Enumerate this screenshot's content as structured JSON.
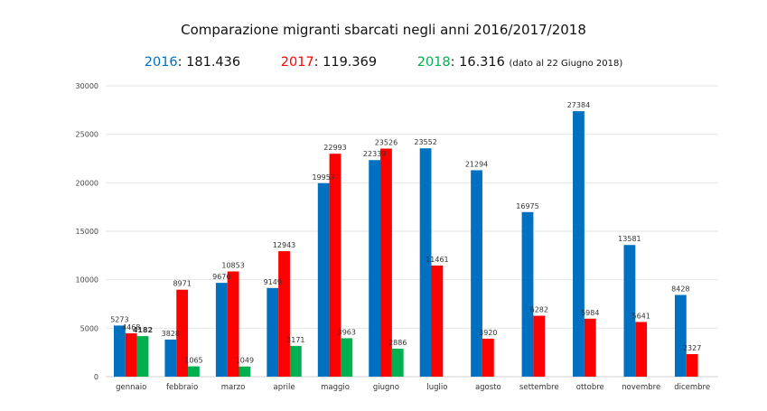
{
  "header": {
    "title": "Comparazione migranti sbarcati negli anni 2016/2017/2018",
    "totals": [
      {
        "year": "2016",
        "value": ": 181.436",
        "color": "#0070C0",
        "note": ""
      },
      {
        "year": "2017",
        "value": ": 119.369",
        "color": "#FF0000",
        "note": ""
      },
      {
        "year": "2018",
        "value": ": 16.316",
        "color": "#00B050",
        "note": "(dato al 22 Giugno 2018)"
      }
    ]
  },
  "chart_data": {
    "type": "bar",
    "title": "Comparazione migranti sbarcati negli anni 2016/2017/2018",
    "xlabel": "",
    "ylabel": "",
    "ylim": [
      0,
      30000
    ],
    "yticks": [
      0,
      5000,
      10000,
      15000,
      20000,
      25000,
      30000
    ],
    "grid": true,
    "categories": [
      "gennaio",
      "febbraio",
      "marzo",
      "aprile",
      "maggio",
      "giugno",
      "luglio",
      "agosto",
      "settembre",
      "ottobre",
      "novembre",
      "dicembre"
    ],
    "series": [
      {
        "name": "2016",
        "color": "#0070C0",
        "values": [
          5273,
          3828,
          9676,
          9149,
          19957,
          22339,
          23552,
          21294,
          16975,
          27384,
          13581,
          8428
        ]
      },
      {
        "name": "2017",
        "color": "#FF0000",
        "values": [
          4468,
          8971,
          10853,
          12943,
          22993,
          23526,
          11461,
          3920,
          6282,
          5984,
          5641,
          2327
        ]
      },
      {
        "name": "2018",
        "color": "#00B050",
        "values": [
          4182,
          1065,
          1049,
          3171,
          3963,
          2886,
          null,
          null,
          null,
          null,
          null,
          null
        ]
      }
    ]
  }
}
